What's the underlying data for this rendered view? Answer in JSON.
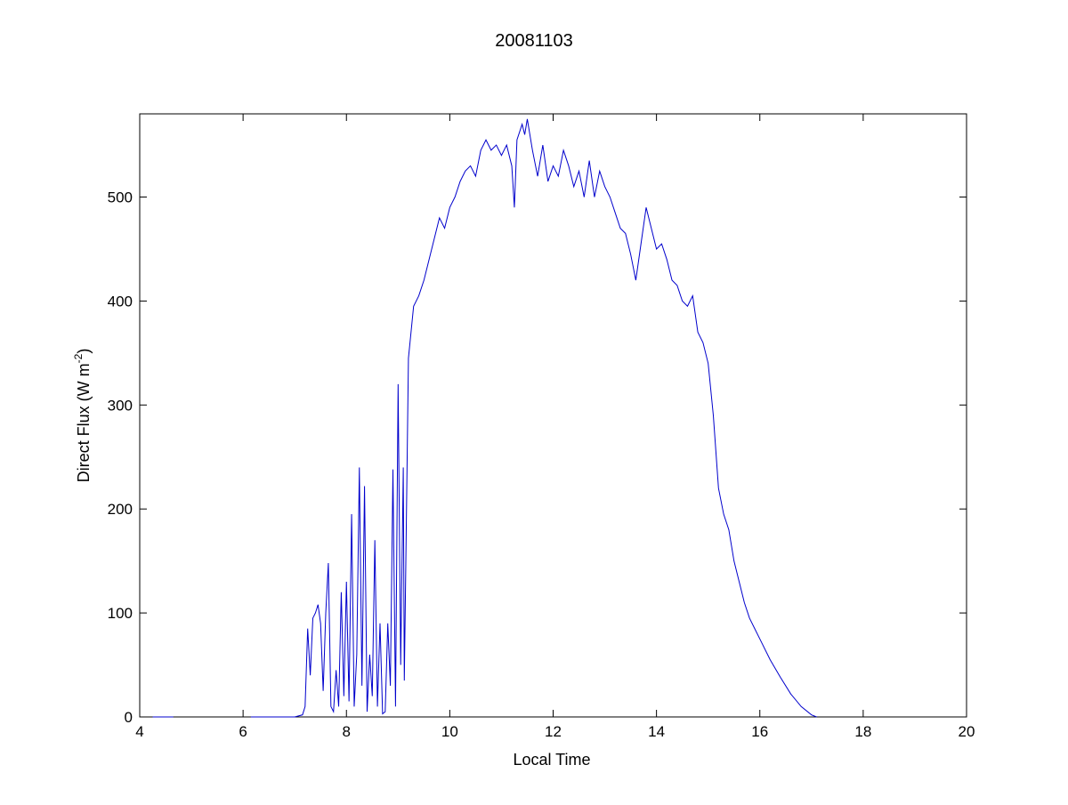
{
  "chart_data": {
    "type": "line",
    "title": "20081103",
    "xlabel": "Local Time",
    "ylabel": {
      "text": "Direct Flux (W m",
      "superscript": "-2",
      "suffix": ")"
    },
    "xlim": [
      4,
      20
    ],
    "xticks": [
      4,
      6,
      8,
      10,
      12,
      14,
      16,
      18,
      20
    ],
    "ylim": [
      0,
      580
    ],
    "yticks": [
      0,
      100,
      200,
      300,
      400,
      500
    ],
    "grid": false,
    "series": [
      {
        "color": "#0000cc",
        "x": [
          4.25,
          4.4,
          4.5,
          4.65,
          5.0,
          6.15,
          6.5,
          7.0,
          7.15,
          7.2,
          7.25,
          7.3,
          7.35,
          7.4,
          7.45,
          7.5,
          7.55,
          7.6,
          7.65,
          7.7,
          7.75,
          7.8,
          7.85,
          7.9,
          7.95,
          8.0,
          8.05,
          8.1,
          8.15,
          8.2,
          8.25,
          8.3,
          8.35,
          8.4,
          8.45,
          8.5,
          8.55,
          8.6,
          8.65,
          8.7,
          8.75,
          8.8,
          8.85,
          8.9,
          8.95,
          9.0,
          9.05,
          9.1,
          9.12,
          9.15,
          9.2,
          9.3,
          9.4,
          9.5,
          9.6,
          9.7,
          9.8,
          9.9,
          10.0,
          10.1,
          10.2,
          10.3,
          10.4,
          10.5,
          10.6,
          10.7,
          10.8,
          10.9,
          11.0,
          11.1,
          11.2,
          11.25,
          11.3,
          11.4,
          11.45,
          11.5,
          11.6,
          11.7,
          11.8,
          11.9,
          12.0,
          12.1,
          12.2,
          12.3,
          12.4,
          12.5,
          12.6,
          12.7,
          12.8,
          12.9,
          13.0,
          13.1,
          13.2,
          13.3,
          13.4,
          13.5,
          13.6,
          13.7,
          13.8,
          13.9,
          14.0,
          14.1,
          14.2,
          14.3,
          14.4,
          14.5,
          14.6,
          14.7,
          14.8,
          14.9,
          15.0,
          15.1,
          15.2,
          15.3,
          15.4,
          15.5,
          15.6,
          15.7,
          15.8,
          15.9,
          16.0,
          16.2,
          16.4,
          16.6,
          16.8,
          17.0,
          17.1
        ],
        "values": [
          0,
          0,
          0,
          0,
          null,
          0,
          0,
          0,
          2,
          10,
          85,
          40,
          95,
          100,
          108,
          90,
          25,
          100,
          148,
          10,
          5,
          45,
          10,
          120,
          20,
          130,
          15,
          195,
          10,
          60,
          240,
          30,
          222,
          5,
          60,
          20,
          170,
          10,
          90,
          3,
          5,
          90,
          30,
          238,
          10,
          320,
          50,
          240,
          35,
          150,
          345,
          395,
          405,
          420,
          440,
          460,
          480,
          470,
          490,
          500,
          515,
          525,
          530,
          520,
          545,
          555,
          545,
          550,
          540,
          550,
          530,
          490,
          555,
          570,
          560,
          575,
          545,
          520,
          550,
          515,
          530,
          520,
          545,
          530,
          510,
          525,
          500,
          535,
          500,
          525,
          510,
          500,
          485,
          470,
          465,
          445,
          420,
          455,
          490,
          470,
          450,
          455,
          440,
          420,
          415,
          400,
          395,
          405,
          370,
          360,
          340,
          290,
          220,
          195,
          180,
          150,
          130,
          110,
          95,
          85,
          75,
          55,
          38,
          22,
          10,
          2,
          0
        ]
      }
    ]
  }
}
